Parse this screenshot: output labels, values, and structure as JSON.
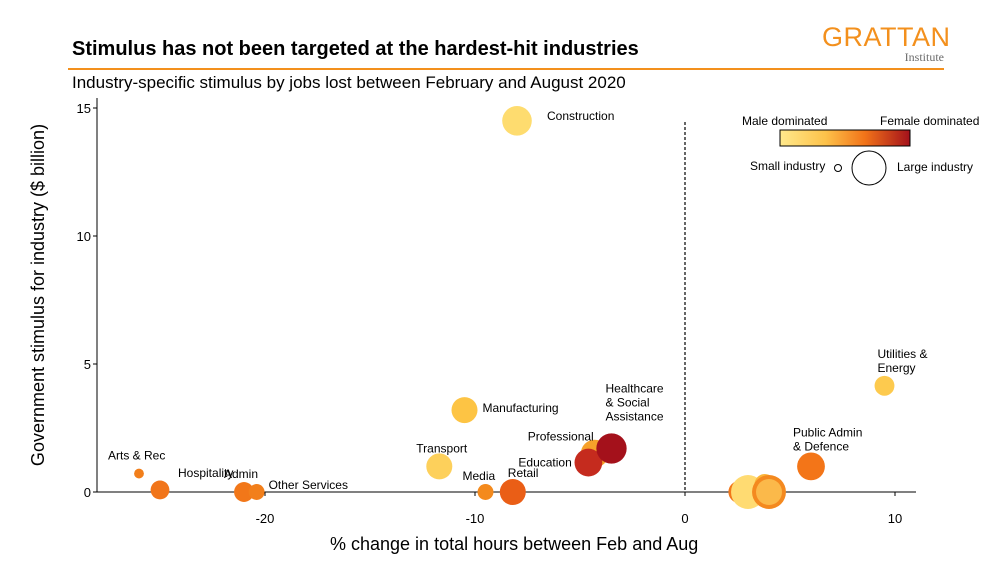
{
  "header": {
    "title": "Stimulus has not been targeted at the hardest-hit industries",
    "subtitle": "Industry-specific stimulus by jobs lost between February and August 2020",
    "logo_main": "GRATTAN",
    "logo_sub": "Institute"
  },
  "legend": {
    "male_label": "Male dominated",
    "female_label": "Female dominated",
    "small_label": "Small industry",
    "large_label": "Large industry"
  },
  "colors": {
    "accent": "#F3901D",
    "male": "#FFE07A",
    "female": "#A4111B"
  },
  "chart_data": {
    "type": "scatter",
    "title": "Stimulus has not been targeted at the hardest-hit industries",
    "subtitle": "Industry-specific stimulus by jobs lost between February and August 2020",
    "xlabel": "% change in total hours between Feb and Aug",
    "ylabel": "Government stimulus for industry ($ billion)",
    "xlim": [
      -28,
      11
    ],
    "ylim": [
      0,
      15
    ],
    "xticks": [
      -20,
      -10,
      0,
      10
    ],
    "yticks": [
      0,
      5,
      10,
      15
    ],
    "grid": false,
    "reference_line_x": 0,
    "size_encoding": "industry size",
    "color_encoding": "male dominated to female dominated",
    "points": [
      {
        "label": "Arts & Rec",
        "x": -26.0,
        "y": 0.72,
        "size": 0.05,
        "color": "#F27F1B"
      },
      {
        "label": "Hospitality",
        "x": -25.0,
        "y": 0.08,
        "size": 0.3,
        "color": "#F1751A"
      },
      {
        "label": "Admin",
        "x": -21.0,
        "y": 0.0,
        "size": 0.33,
        "color": "#F27719"
      },
      {
        "label": "Other Services",
        "x": -20.4,
        "y": 0.0,
        "size": 0.22,
        "color": "#F27F1B"
      },
      {
        "label": "Construction",
        "x": -8.0,
        "y": 14.5,
        "size": 0.6,
        "color": "#FEDC6F"
      },
      {
        "label": "Manufacturing",
        "x": -10.5,
        "y": 3.2,
        "size": 0.5,
        "color": "#FDC444"
      },
      {
        "label": "Transport",
        "x": -11.7,
        "y": 1.0,
        "size": 0.5,
        "color": "#FDD05B"
      },
      {
        "label": "Media",
        "x": -9.5,
        "y": 0.0,
        "size": 0.22,
        "color": "#F48A1D"
      },
      {
        "label": "Retail",
        "x": -8.2,
        "y": 0.0,
        "size": 0.5,
        "color": "#EA5E16"
      },
      {
        "label": "Professional",
        "x": -4.3,
        "y": 1.5,
        "size": 0.55,
        "color": "#F6A12A"
      },
      {
        "label": "Education",
        "x": -4.6,
        "y": 1.15,
        "size": 0.55,
        "color": "#C52B1E"
      },
      {
        "label": "Healthcare & Social Assistance",
        "x": -3.5,
        "y": 1.7,
        "size": 0.62,
        "color": "#A4111B"
      },
      {
        "label": "Public Admin & Defence",
        "x": 6.0,
        "y": 1.0,
        "size": 0.55,
        "color": "#F37518"
      },
      {
        "label": "Utilities & Energy",
        "x": 9.5,
        "y": 4.15,
        "size": 0.33,
        "color": "#FDCA4E"
      },
      {
        "label": "",
        "x": 2.6,
        "y": 0.0,
        "size": 0.4,
        "color": "#F27719"
      },
      {
        "label": "",
        "x": 3.0,
        "y": 0.0,
        "size": 0.72,
        "color": "#FFDB72"
      },
      {
        "label": "",
        "x": 3.8,
        "y": 0.3,
        "size": 0.35,
        "color": "#FBB53A"
      },
      {
        "label": "",
        "x": 4.0,
        "y": 0.0,
        "size": 0.72,
        "color": "#F4891F"
      },
      {
        "label": "",
        "x": 4.0,
        "y": 0.0,
        "size": 0.5,
        "color": "#FBB94A"
      }
    ]
  }
}
